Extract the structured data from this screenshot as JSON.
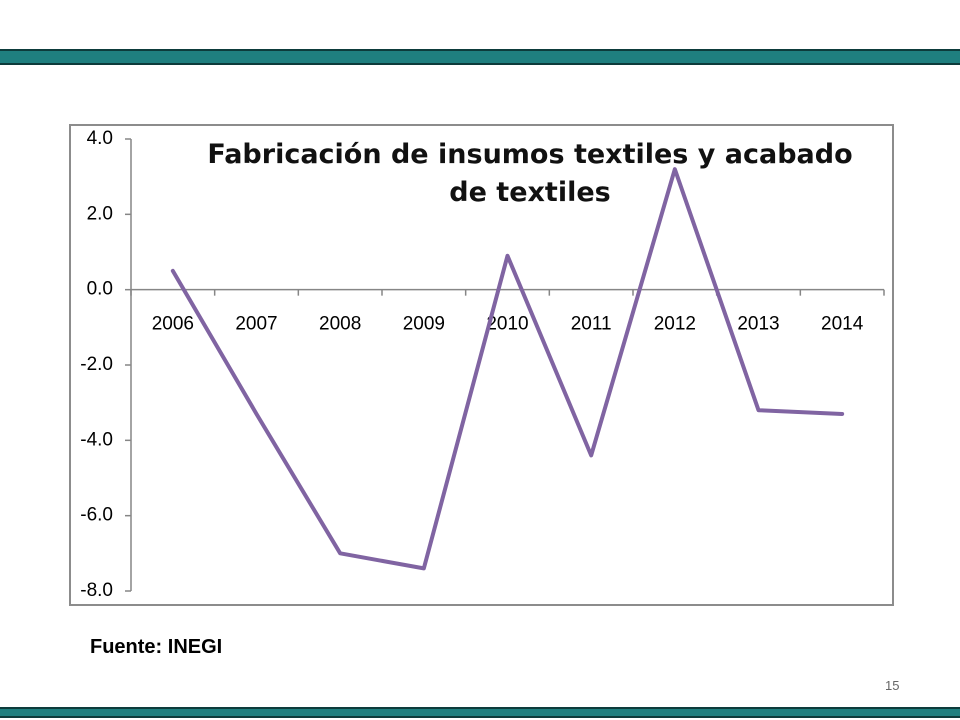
{
  "chart_data": {
    "type": "line",
    "title": "Fabricación de insumos textiles y acabado de textiles",
    "categories": [
      "2006",
      "2007",
      "2008",
      "2009",
      "2010",
      "2011",
      "2012",
      "2013",
      "2014"
    ],
    "series": [
      {
        "name": "Fabricación de insumos textiles y acabado de textiles",
        "color": "#8064a2",
        "values": [
          0.5,
          -3.3,
          -7.0,
          -7.4,
          0.9,
          -4.4,
          3.2,
          -3.2,
          -3.3
        ]
      }
    ],
    "ylim": [
      -8,
      4
    ],
    "yticks": [
      {
        "value": -8,
        "label": "-8.0"
      },
      {
        "value": -6,
        "label": "-6.0"
      },
      {
        "value": -4,
        "label": "-4.0"
      },
      {
        "value": -2,
        "label": "-2.0"
      },
      {
        "value": 0,
        "label": "0.0"
      },
      {
        "value": 2,
        "label": "2.0"
      },
      {
        "value": 4,
        "label": "4.0"
      }
    ],
    "grid": false
  },
  "footer": {
    "source": "Fuente: INEGI",
    "page_number": "15"
  }
}
